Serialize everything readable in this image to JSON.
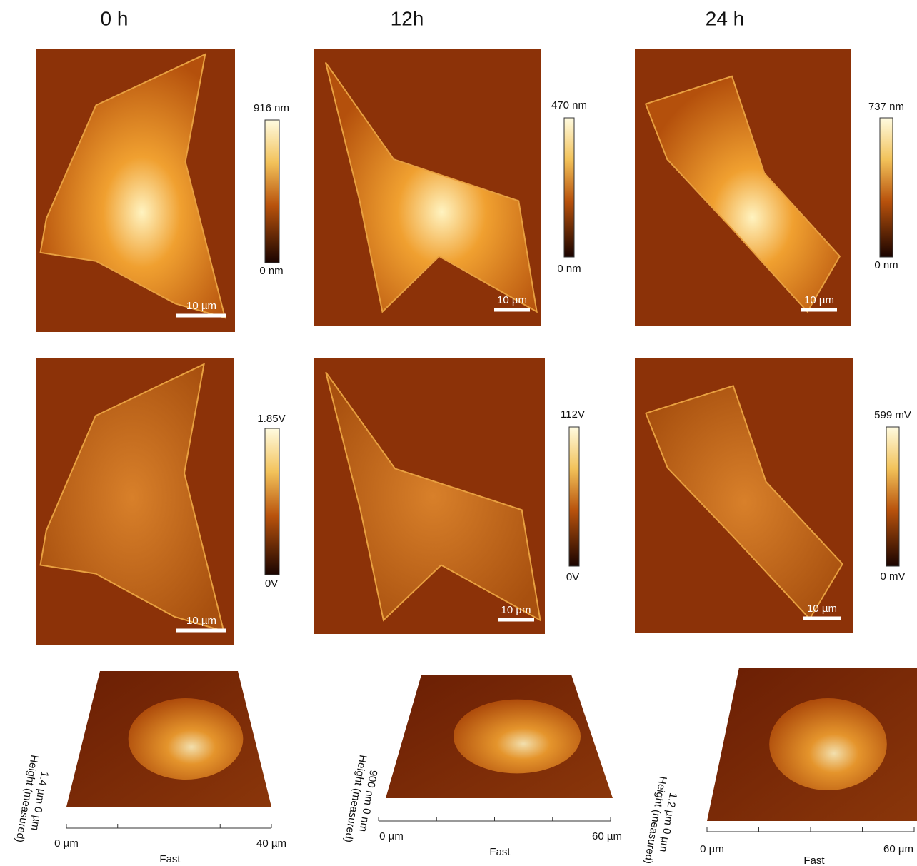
{
  "columns": [
    {
      "title": "0 h",
      "height": {
        "max": "916 nm",
        "min": "0 nm",
        "scale": "10 µm"
      },
      "deflection": {
        "max": "1.85V",
        "min": "0V",
        "scale": "10 µm"
      },
      "three_d": {
        "z_label": "1.4 µm 0 µm",
        "z_axis": "Height (measured)",
        "x_start": "0 µm",
        "x_end": "40 µm",
        "x_axis": "Fast"
      }
    },
    {
      "title": "12h",
      "height": {
        "max": "470 nm",
        "min": "0 nm",
        "scale": "10 µm"
      },
      "deflection": {
        "max": "112V",
        "min": "0V",
        "scale": "10 µm"
      },
      "three_d": {
        "z_label": "900 nm 0 nm",
        "z_axis": "Height (measured)",
        "x_start": "0 µm",
        "x_end": "60 µm",
        "x_axis": "Fast"
      }
    },
    {
      "title": "24 h",
      "height": {
        "max": "737 nm",
        "min": "0 nm",
        "scale": "10 µm"
      },
      "deflection": {
        "max": "599 mV",
        "min": "0 mV",
        "scale": "10 µm"
      },
      "three_d": {
        "z_label": "1.2 µm 0 µm",
        "z_axis": "Height (measured)",
        "x_start": "0 µm",
        "x_end": "60 µm",
        "x_axis": "Fast"
      }
    }
  ]
}
